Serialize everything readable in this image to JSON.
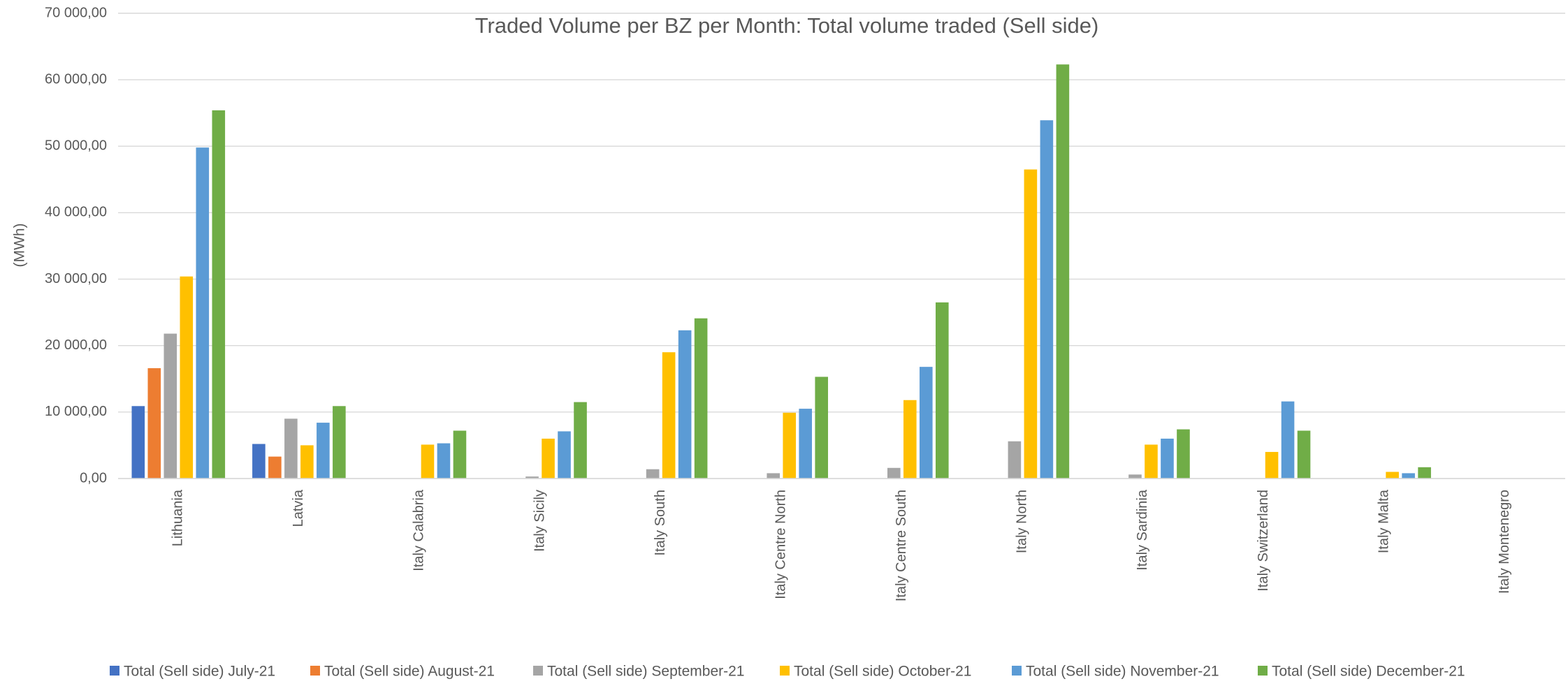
{
  "chart_data": {
    "type": "bar",
    "title": "Traded Volume per BZ per Month: Total volume traded (Sell side)",
    "ylabel": "(MWh)",
    "categories": [
      "Lithuania",
      "Latvia",
      "Italy Calabria",
      "Italy Sicily",
      "Italy South",
      "Italy Centre North",
      "Italy Centre South",
      "Italy North",
      "Italy Sardinia",
      "Italy Switzerland",
      "Italy Malta",
      "Italy Montenegro"
    ],
    "series": [
      {
        "name": "Total (Sell side) July-21",
        "color": "#4472c4",
        "values": [
          10900,
          5200,
          0,
          0,
          0,
          0,
          0,
          0,
          0,
          0,
          0,
          0
        ]
      },
      {
        "name": "Total (Sell side) August-21",
        "color": "#ed7d31",
        "values": [
          16600,
          3300,
          0,
          0,
          0,
          0,
          0,
          0,
          0,
          0,
          0,
          0
        ]
      },
      {
        "name": "Total (Sell side) September-21",
        "color": "#a5a5a5",
        "values": [
          21800,
          9000,
          0,
          300,
          1400,
          800,
          1600,
          5600,
          600,
          0,
          0,
          0
        ]
      },
      {
        "name": "Total (Sell side) October-21",
        "color": "#ffc000",
        "values": [
          30400,
          5000,
          5100,
          6000,
          19000,
          9900,
          11800,
          46500,
          5100,
          4000,
          1000,
          0
        ]
      },
      {
        "name": "Total (Sell side) November-21",
        "color": "#5b9bd5",
        "values": [
          49800,
          8400,
          5300,
          7100,
          22300,
          10500,
          16800,
          53900,
          6000,
          11600,
          800,
          0
        ]
      },
      {
        "name": "Total (Sell side) December-21",
        "color": "#70ad47",
        "values": [
          55400,
          10900,
          7200,
          11500,
          24100,
          15300,
          26500,
          62300,
          7400,
          7200,
          1700,
          0
        ]
      }
    ],
    "ylim": [
      0,
      70000
    ],
    "yticks": [
      {
        "value": 0,
        "label": "0,00"
      },
      {
        "value": 10000,
        "label": "10 000,00"
      },
      {
        "value": 20000,
        "label": "20 000,00"
      },
      {
        "value": 30000,
        "label": "30 000,00"
      },
      {
        "value": 40000,
        "label": "40 000,00"
      },
      {
        "value": 50000,
        "label": "50 000,00"
      },
      {
        "value": 60000,
        "label": "60 000,00"
      },
      {
        "value": 70000,
        "label": "70 000,00"
      }
    ],
    "grid": true,
    "legend": "bottom"
  }
}
